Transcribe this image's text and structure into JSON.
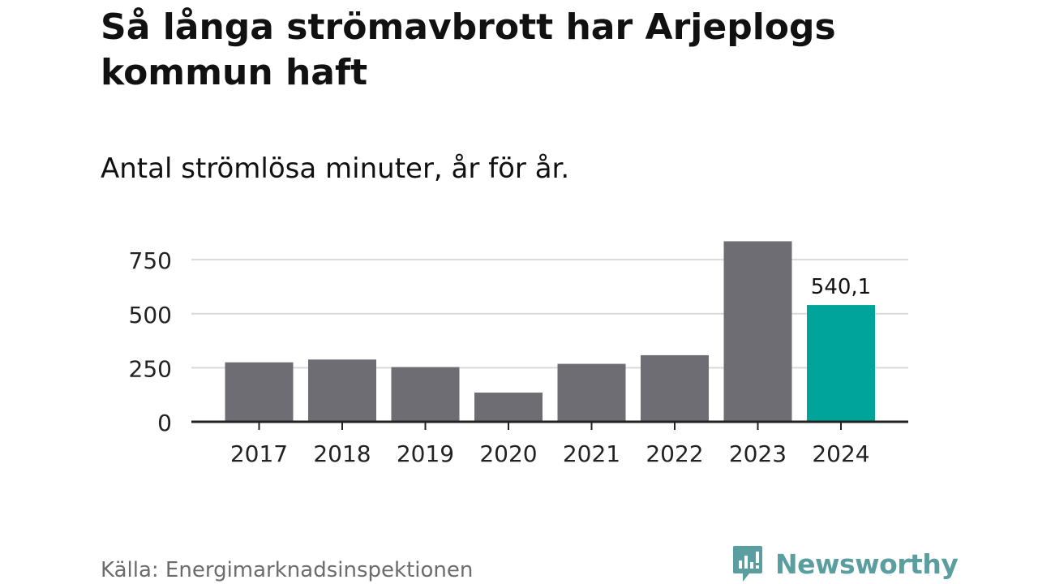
{
  "header": {
    "title": "Så långa strömavbrott har Arjeplogs kommun haft",
    "subtitle": "Antal strömlösa minuter, år för år."
  },
  "footer": {
    "source": "Källa: Energimarknadsinspektionen",
    "brand_name": "Newsworthy"
  },
  "colors": {
    "bar": "#6e6d73",
    "highlight": "#00a499",
    "grid": "#d9d9d9",
    "axis": "#222222",
    "brand": "#5a9ea0"
  },
  "chart_data": {
    "type": "bar",
    "title": "Så långa strömavbrott har Arjeplogs kommun haft",
    "subtitle": "Antal strömlösa minuter, år för år.",
    "xlabel": "",
    "ylabel": "",
    "categories": [
      "2017",
      "2018",
      "2019",
      "2020",
      "2021",
      "2022",
      "2023",
      "2024"
    ],
    "values": [
      275,
      288,
      253,
      135,
      268,
      308,
      835,
      540.1
    ],
    "highlight_index": 7,
    "data_labels": [
      {
        "index": 7,
        "text": "540,1"
      }
    ],
    "yticks": [
      0,
      250,
      500,
      750
    ],
    "ytick_labels": [
      "0",
      "250",
      "500",
      "750"
    ],
    "ylim": [
      0,
      835
    ],
    "grid": true,
    "legend": "none"
  }
}
